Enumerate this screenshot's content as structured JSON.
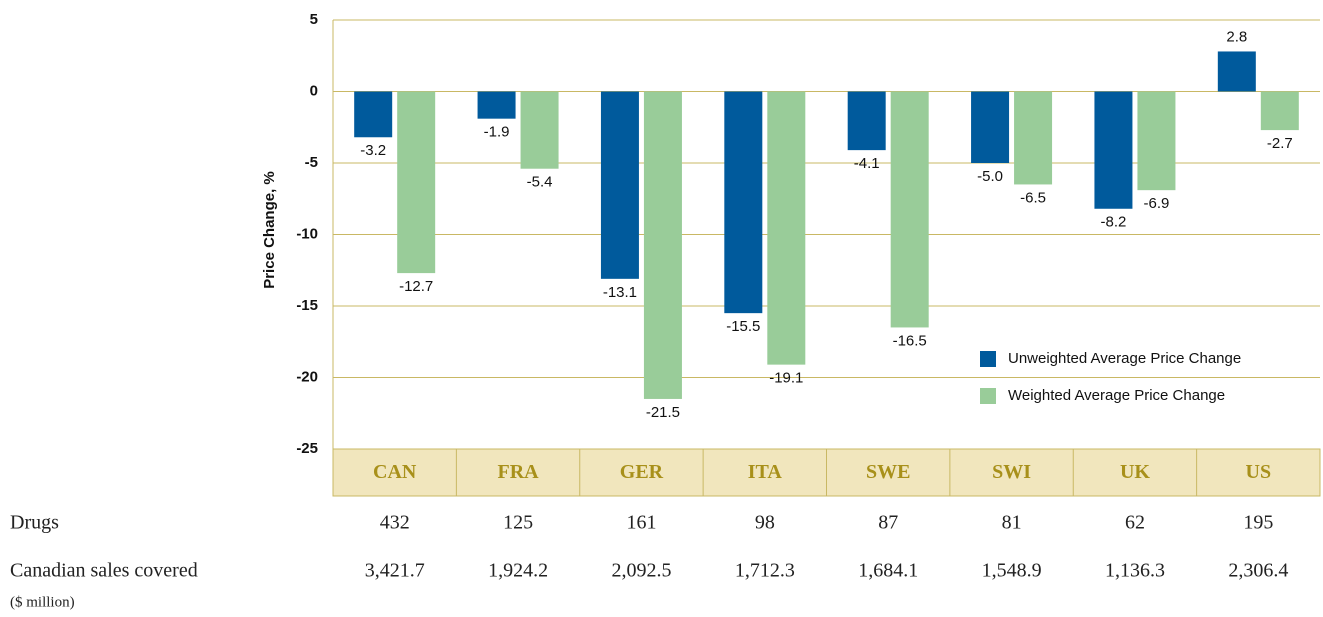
{
  "chart_data": {
    "type": "bar",
    "y_axis_label": "Price Change, %",
    "categories": [
      "CAN",
      "FRA",
      "GER",
      "ITA",
      "SWE",
      "SWI",
      "UK",
      "US"
    ],
    "series": [
      {
        "name": "Unweighted Average Price Change",
        "color": "#005a9c",
        "values": [
          -3.2,
          -1.9,
          -13.1,
          -15.5,
          -4.1,
          -5.0,
          -8.2,
          2.8
        ],
        "value_labels": [
          "-3.2",
          "-1.9",
          "-13.1",
          "-15.5",
          "-4.1",
          "-5.0",
          "-8.2",
          "2.8"
        ]
      },
      {
        "name": "Weighted Average Price Change",
        "color": "#99cc99",
        "values": [
          -12.7,
          -5.4,
          -21.5,
          -19.1,
          -16.5,
          -6.5,
          -6.9,
          -2.7
        ],
        "value_labels": [
          "-12.7",
          "-5.4",
          "-21.5",
          "-19.1",
          "-16.5",
          "-6.5",
          "-6.9",
          "-2.7"
        ]
      }
    ],
    "ylim": [
      -25,
      5
    ],
    "yticks": [
      5,
      0,
      -5,
      -10,
      -15,
      -20,
      -25
    ],
    "grid": true,
    "legend": "lower right"
  },
  "table": {
    "rows": [
      {
        "label": "Drugs",
        "cells": [
          "432",
          "125",
          "161",
          "98",
          "87",
          "81",
          "62",
          "195"
        ]
      },
      {
        "label": "Canadian sales covered",
        "sublabel": "($ million)",
        "cells": [
          "3,421.7",
          "1,924.2",
          "2,092.5",
          "1,712.3",
          "1,684.1",
          "1,548.9",
          "1,136.3",
          "2,306.4"
        ]
      }
    ]
  }
}
